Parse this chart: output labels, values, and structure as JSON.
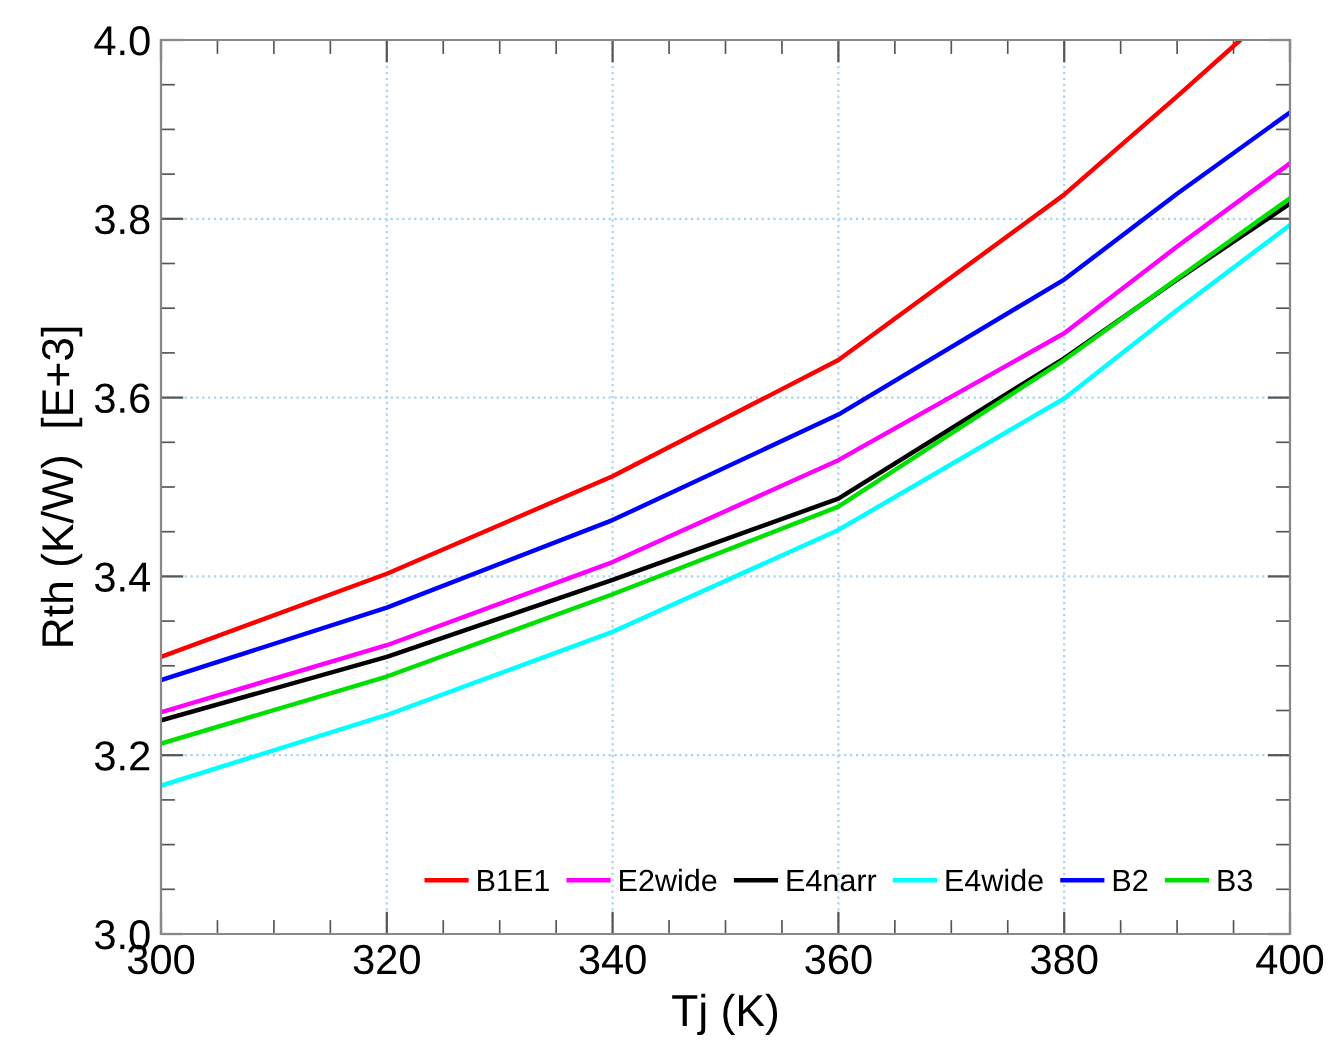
{
  "chart_data": {
    "type": "line",
    "xlabel": "Tj (K)",
    "ylabel": "Rth (K/W)  [E+3]",
    "x": [
      300,
      320,
      340,
      360,
      380,
      390,
      400
    ],
    "series": [
      {
        "name": "B1E1",
        "color": "#ff0000",
        "x": [
          300,
          320,
          340,
          360,
          380,
          390,
          395.6
        ],
        "values": [
          3.31,
          3.403,
          3.512,
          3.642,
          3.827,
          3.937,
          4.0
        ]
      },
      {
        "name": "E2wide",
        "color": "#ff00ff",
        "values": [
          3.248,
          3.323,
          3.416,
          3.53,
          3.672,
          3.769,
          3.862
        ]
      },
      {
        "name": "E4narr",
        "color": "#000000",
        "values": [
          3.239,
          3.31,
          3.396,
          3.487,
          3.644,
          3.732,
          3.817
        ]
      },
      {
        "name": "E4wide",
        "color": "#00ffff",
        "values": [
          3.166,
          3.245,
          3.338,
          3.452,
          3.599,
          3.698,
          3.793
        ]
      },
      {
        "name": "B2",
        "color": "#0000ff",
        "values": [
          3.284,
          3.365,
          3.463,
          3.581,
          3.732,
          3.828,
          3.919
        ]
      },
      {
        "name": "B3",
        "color": "#00e000",
        "values": [
          3.213,
          3.288,
          3.38,
          3.478,
          3.642,
          3.733,
          3.823
        ]
      }
    ],
    "xlim": [
      300,
      400
    ],
    "ylim": [
      3.0,
      4.0
    ],
    "xticks": [
      300,
      320,
      340,
      360,
      380,
      400
    ],
    "yticks": [
      {
        "value": 3.0,
        "label": "3.0"
      },
      3.2,
      3.4,
      3.6,
      3.8,
      {
        "value": 4.0,
        "label": "4.0"
      }
    ],
    "grid": true,
    "legend": "bottom right",
    "marker": "none",
    "line_style": "solid"
  }
}
